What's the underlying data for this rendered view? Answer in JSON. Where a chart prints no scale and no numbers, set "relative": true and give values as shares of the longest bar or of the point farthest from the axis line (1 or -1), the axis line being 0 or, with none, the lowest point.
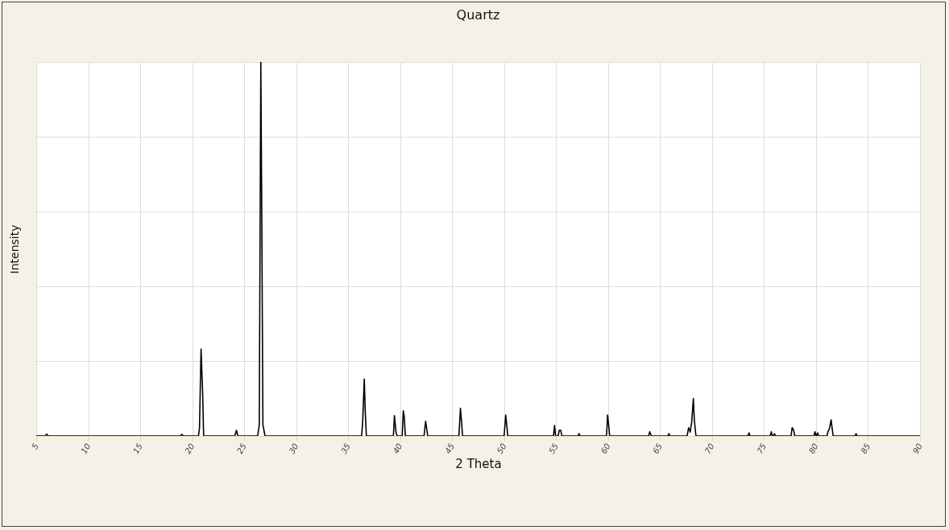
{
  "chart_data": {
    "type": "line",
    "title": "Quartz",
    "xlabel": "2 Theta",
    "ylabel": "Intensity",
    "relative": true,
    "grid": true,
    "xlim": [
      5,
      90
    ],
    "xticks": [
      5,
      10,
      15,
      20,
      25,
      30,
      35,
      40,
      45,
      50,
      55,
      60,
      65,
      70,
      75,
      80,
      85,
      90
    ],
    "series": [
      {
        "color": "#000000",
        "x": [
          5,
          5.85,
          6.0,
          6.15,
          18.85,
          19.0,
          19.15,
          20.6,
          20.7,
          20.85,
          21.0,
          21.1,
          24.1,
          24.25,
          24.4,
          26.3,
          26.45,
          26.6,
          26.7,
          26.8,
          27.0,
          36.3,
          36.4,
          36.55,
          36.65,
          36.75,
          39.35,
          39.45,
          39.6,
          39.7,
          40.2,
          40.3,
          40.4,
          40.5,
          42.3,
          42.45,
          42.55,
          42.65,
          45.65,
          45.8,
          45.9,
          46.0,
          50.0,
          50.15,
          50.25,
          50.35,
          54.75,
          54.85,
          54.95,
          55.2,
          55.3,
          55.45,
          55.55,
          57.1,
          57.2,
          57.3,
          59.85,
          59.95,
          60.05,
          60.15,
          63.9,
          64.0,
          64.15,
          65.75,
          65.85,
          65.95,
          67.6,
          67.75,
          67.9,
          68.05,
          68.2,
          68.3,
          68.45,
          73.45,
          73.55,
          73.65,
          75.6,
          75.7,
          75.8,
          75.9,
          76.0,
          76.1,
          77.6,
          77.7,
          77.85,
          77.95,
          79.8,
          79.9,
          80.0,
          80.05,
          80.15,
          80.25,
          81.05,
          81.15,
          81.3,
          81.45,
          81.55,
          81.65,
          83.75,
          83.85,
          83.95,
          90
        ],
        "values": [
          0,
          0,
          0.005,
          0,
          0,
          0.004,
          0,
          0,
          0.02,
          0.232,
          0.12,
          0,
          0,
          0.015,
          0,
          0,
          0.03,
          1,
          0.55,
          0.03,
          0,
          0,
          0.04,
          0.152,
          0.06,
          0,
          0,
          0.054,
          0.01,
          0,
          0,
          0.067,
          0.05,
          0,
          0,
          0.039,
          0.02,
          0,
          0,
          0.074,
          0.04,
          0,
          0,
          0.056,
          0.03,
          0,
          0,
          0.028,
          0,
          0,
          0.015,
          0.015,
          0,
          0,
          0.006,
          0,
          0,
          0.056,
          0.03,
          0,
          0,
          0.011,
          0,
          0,
          0.006,
          0,
          0,
          0.022,
          0.01,
          0.039,
          0.1,
          0.04,
          0,
          0,
          0.008,
          0,
          0,
          0.011,
          0,
          0,
          0.006,
          0,
          0,
          0.022,
          0.015,
          0,
          0,
          0.011,
          0,
          0,
          0.008,
          0,
          0,
          0.011,
          0.02,
          0.043,
          0.02,
          0,
          0,
          0.006,
          0,
          0
        ]
      }
    ]
  }
}
